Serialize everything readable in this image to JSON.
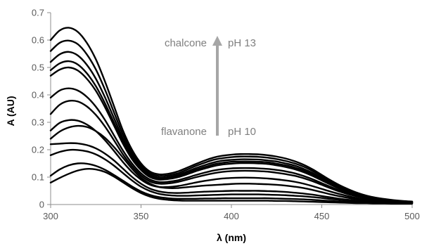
{
  "chart_data": {
    "type": "line",
    "title": "",
    "xlabel": "λ (nm)",
    "ylabel": "A (AU)",
    "xlim": [
      300,
      500
    ],
    "ylim": [
      0,
      0.7
    ],
    "x_ticks": [
      "300",
      "350",
      "400",
      "450",
      "500"
    ],
    "y_ticks": [
      "0",
      "0.1",
      "0.2",
      "0.3",
      "0.4",
      "0.5",
      "0.6",
      "0.7"
    ],
    "grid": false,
    "legend": "none",
    "line_color": "#000000",
    "arrow_color": "#a6a6a6",
    "annotations": {
      "top_left": "chalcone",
      "top_right": "pH 13",
      "bottom_left": "flavanone",
      "bottom_right": "pH 10"
    },
    "x": [
      300,
      305,
      310,
      315,
      320,
      325,
      330,
      335,
      340,
      345,
      350,
      355,
      360,
      365,
      370,
      375,
      380,
      385,
      390,
      395,
      400,
      405,
      410,
      415,
      420,
      425,
      430,
      435,
      440,
      445,
      450,
      455,
      460,
      465,
      470,
      475,
      480,
      485,
      490,
      495,
      500
    ],
    "series": [
      {
        "values": [
          0.6,
          0.635,
          0.645,
          0.63,
          0.59,
          0.53,
          0.45,
          0.36,
          0.27,
          0.2,
          0.15,
          0.12,
          0.11,
          0.112,
          0.12,
          0.133,
          0.147,
          0.16,
          0.171,
          0.178,
          0.182,
          0.184,
          0.184,
          0.183,
          0.18,
          0.175,
          0.168,
          0.158,
          0.145,
          0.128,
          0.108,
          0.088,
          0.07,
          0.055,
          0.042,
          0.032,
          0.025,
          0.02,
          0.016,
          0.013,
          0.011
        ]
      },
      {
        "values": [
          0.56,
          0.59,
          0.598,
          0.585,
          0.548,
          0.493,
          0.42,
          0.337,
          0.255,
          0.19,
          0.143,
          0.114,
          0.104,
          0.106,
          0.113,
          0.126,
          0.14,
          0.152,
          0.163,
          0.169,
          0.173,
          0.175,
          0.175,
          0.174,
          0.171,
          0.166,
          0.159,
          0.15,
          0.138,
          0.122,
          0.103,
          0.084,
          0.067,
          0.052,
          0.04,
          0.031,
          0.024,
          0.019,
          0.015,
          0.012,
          0.01
        ]
      },
      {
        "values": [
          0.52,
          0.548,
          0.557,
          0.544,
          0.51,
          0.459,
          0.392,
          0.316,
          0.241,
          0.18,
          0.136,
          0.108,
          0.098,
          0.1,
          0.107,
          0.119,
          0.132,
          0.143,
          0.153,
          0.16,
          0.163,
          0.165,
          0.165,
          0.164,
          0.161,
          0.157,
          0.15,
          0.142,
          0.13,
          0.115,
          0.097,
          0.079,
          0.063,
          0.05,
          0.038,
          0.029,
          0.023,
          0.018,
          0.014,
          0.011,
          0.01
        ]
      },
      {
        "values": [
          0.49,
          0.515,
          0.523,
          0.511,
          0.479,
          0.432,
          0.37,
          0.299,
          0.229,
          0.171,
          0.13,
          0.103,
          0.094,
          0.096,
          0.102,
          0.113,
          0.126,
          0.136,
          0.146,
          0.152,
          0.156,
          0.157,
          0.157,
          0.156,
          0.154,
          0.149,
          0.143,
          0.135,
          0.124,
          0.109,
          0.092,
          0.075,
          0.06,
          0.047,
          0.036,
          0.028,
          0.022,
          0.017,
          0.014,
          0.011,
          0.009
        ]
      },
      {
        "values": [
          0.47,
          0.492,
          0.5,
          0.489,
          0.459,
          0.415,
          0.356,
          0.289,
          0.222,
          0.166,
          0.126,
          0.1,
          0.091,
          0.093,
          0.099,
          0.109,
          0.121,
          0.131,
          0.14,
          0.146,
          0.149,
          0.151,
          0.151,
          0.15,
          0.148,
          0.143,
          0.137,
          0.129,
          0.118,
          0.104,
          0.088,
          0.072,
          0.057,
          0.045,
          0.035,
          0.027,
          0.021,
          0.017,
          0.013,
          0.011,
          0.009
        ]
      },
      {
        "values": [
          0.39,
          0.416,
          0.424,
          0.416,
          0.393,
          0.357,
          0.309,
          0.253,
          0.197,
          0.15,
          0.114,
          0.091,
          0.082,
          0.083,
          0.088,
          0.097,
          0.107,
          0.116,
          0.124,
          0.129,
          0.132,
          0.133,
          0.133,
          0.132,
          0.13,
          0.126,
          0.121,
          0.114,
          0.104,
          0.092,
          0.078,
          0.064,
          0.051,
          0.04,
          0.031,
          0.024,
          0.019,
          0.015,
          0.012,
          0.01,
          0.008
        ]
      },
      {
        "values": [
          0.33,
          0.364,
          0.378,
          0.376,
          0.358,
          0.327,
          0.285,
          0.235,
          0.183,
          0.14,
          0.106,
          0.084,
          0.076,
          0.077,
          0.082,
          0.09,
          0.099,
          0.107,
          0.114,
          0.119,
          0.122,
          0.123,
          0.123,
          0.122,
          0.12,
          0.116,
          0.111,
          0.105,
          0.096,
          0.085,
          0.072,
          0.059,
          0.047,
          0.037,
          0.029,
          0.022,
          0.018,
          0.014,
          0.011,
          0.009,
          0.008
        ]
      },
      {
        "values": [
          0.27,
          0.298,
          0.308,
          0.306,
          0.292,
          0.268,
          0.235,
          0.196,
          0.155,
          0.119,
          0.091,
          0.072,
          0.064,
          0.064,
          0.067,
          0.073,
          0.08,
          0.086,
          0.091,
          0.095,
          0.097,
          0.098,
          0.098,
          0.097,
          0.095,
          0.092,
          0.088,
          0.083,
          0.076,
          0.067,
          0.057,
          0.047,
          0.038,
          0.03,
          0.023,
          0.018,
          0.014,
          0.011,
          0.009,
          0.008,
          0.007
        ]
      },
      {
        "values": [
          0.24,
          0.266,
          0.281,
          0.287,
          0.283,
          0.268,
          0.244,
          0.21,
          0.171,
          0.131,
          0.098,
          0.076,
          0.064,
          0.06,
          0.06,
          0.063,
          0.066,
          0.069,
          0.071,
          0.073,
          0.075,
          0.076,
          0.076,
          0.075,
          0.074,
          0.072,
          0.069,
          0.065,
          0.06,
          0.053,
          0.045,
          0.037,
          0.03,
          0.024,
          0.019,
          0.015,
          0.012,
          0.01,
          0.008,
          0.007,
          0.006
        ]
      },
      {
        "values": [
          0.22,
          0.222,
          0.224,
          0.223,
          0.217,
          0.205,
          0.186,
          0.161,
          0.131,
          0.101,
          0.076,
          0.058,
          0.048,
          0.043,
          0.042,
          0.043,
          0.045,
          0.047,
          0.048,
          0.049,
          0.05,
          0.05,
          0.05,
          0.05,
          0.049,
          0.048,
          0.046,
          0.043,
          0.04,
          0.036,
          0.031,
          0.026,
          0.021,
          0.017,
          0.014,
          0.011,
          0.009,
          0.008,
          0.007,
          0.006,
          0.005
        ]
      },
      {
        "values": [
          0.18,
          0.192,
          0.199,
          0.199,
          0.194,
          0.183,
          0.165,
          0.142,
          0.115,
          0.088,
          0.065,
          0.049,
          0.039,
          0.034,
          0.032,
          0.032,
          0.033,
          0.034,
          0.035,
          0.036,
          0.037,
          0.037,
          0.037,
          0.037,
          0.036,
          0.035,
          0.034,
          0.032,
          0.03,
          0.027,
          0.024,
          0.02,
          0.017,
          0.014,
          0.011,
          0.009,
          0.008,
          0.007,
          0.006,
          0.005,
          0.005
        ]
      },
      {
        "values": [
          0.105,
          0.128,
          0.143,
          0.15,
          0.149,
          0.141,
          0.127,
          0.108,
          0.087,
          0.066,
          0.048,
          0.035,
          0.027,
          0.023,
          0.021,
          0.021,
          0.021,
          0.022,
          0.022,
          0.023,
          0.023,
          0.023,
          0.023,
          0.023,
          0.023,
          0.022,
          0.021,
          0.02,
          0.019,
          0.017,
          0.015,
          0.013,
          0.011,
          0.009,
          0.008,
          0.007,
          0.006,
          0.005,
          0.005,
          0.004,
          0.004
        ]
      },
      {
        "values": [
          0.08,
          0.097,
          0.112,
          0.124,
          0.13,
          0.128,
          0.119,
          0.102,
          0.081,
          0.06,
          0.042,
          0.029,
          0.021,
          0.017,
          0.015,
          0.014,
          0.014,
          0.014,
          0.014,
          0.014,
          0.014,
          0.014,
          0.014,
          0.014,
          0.014,
          0.013,
          0.013,
          0.012,
          0.011,
          0.01,
          0.009,
          0.008,
          0.007,
          0.006,
          0.005,
          0.005,
          0.004,
          0.004,
          0.003,
          0.003,
          0.003
        ]
      }
    ]
  }
}
